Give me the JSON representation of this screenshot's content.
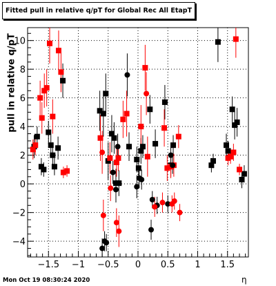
{
  "title": "Fitted pull in relative q/pT  for Global Rec All EtapT",
  "timestamp": "Mon Oct 19 08:30:24 2020",
  "chart_data": {
    "type": "scatter",
    "xlabel": "η",
    "ylabel": "pull in relative q/pT",
    "xlim": [
      -1.85,
      1.85
    ],
    "ylim": [
      -5.1,
      10.9
    ],
    "x_ticks": [
      -1.5,
      -1,
      -0.5,
      0,
      0.5,
      1,
      1.5
    ],
    "x_tick_labels": [
      "−1.5",
      "−1",
      "−0.5",
      "0",
      "0.5",
      "1",
      "1.5"
    ],
    "y_ticks": [
      -4,
      -2,
      0,
      2,
      4,
      6,
      8,
      10
    ],
    "y_tick_labels": [
      "−4",
      "−2",
      "0",
      "2",
      "4",
      "6",
      "8",
      "10"
    ],
    "grid": true,
    "legend": "none",
    "series": [
      {
        "marker": "square",
        "color": "#000000",
        "points": [
          {
            "x": -1.74,
            "y": 2.6,
            "err": 0.8
          },
          {
            "x": -1.69,
            "y": 3.3,
            "err": 0.7
          },
          {
            "x": -1.62,
            "y": 1.2,
            "err": 0.6
          },
          {
            "x": -1.58,
            "y": 1.0,
            "err": 0.5
          },
          {
            "x": -1.5,
            "y": 3.6,
            "err": 0.8
          },
          {
            "x": -1.46,
            "y": 2.7,
            "err": 0.7
          },
          {
            "x": -1.43,
            "y": 2.0,
            "err": 0.9
          },
          {
            "x": -1.4,
            "y": 1.2,
            "err": 0.6
          },
          {
            "x": -1.34,
            "y": 2.5,
            "err": 0.8
          },
          {
            "x": -1.26,
            "y": 7.2,
            "err": 1.2
          },
          {
            "x": -0.64,
            "y": 5.1,
            "err": 1.4
          },
          {
            "x": -0.58,
            "y": 4.9,
            "err": 1.6
          },
          {
            "x": -0.54,
            "y": 6.3,
            "err": 1.4
          },
          {
            "x": -0.5,
            "y": 1.6,
            "err": 1.3
          },
          {
            "x": -0.44,
            "y": 3.5,
            "err": 1.3
          },
          {
            "x": -0.4,
            "y": 3.2,
            "err": 1.1
          },
          {
            "x": -0.37,
            "y": 0.05,
            "err": 1.0
          },
          {
            "x": -0.32,
            "y": 0.05,
            "err": 0.9
          },
          {
            "x": -0.15,
            "y": 2.6,
            "err": 1.0
          },
          {
            "x": -0.02,
            "y": 1.7,
            "err": 0.9
          },
          {
            "x": 0.01,
            "y": 1.1,
            "err": 0.7
          },
          {
            "x": 0.05,
            "y": 2.3,
            "err": 0.9
          },
          {
            "x": 0.08,
            "y": 2.6,
            "err": 0.8
          },
          {
            "x": 0.2,
            "y": 5.2,
            "err": 1.0
          },
          {
            "x": 0.29,
            "y": 2.8,
            "err": 1.0
          },
          {
            "x": 0.45,
            "y": 5.7,
            "err": 1.2
          },
          {
            "x": 0.55,
            "y": 1.3,
            "err": 0.8
          },
          {
            "x": 0.59,
            "y": 2.7,
            "err": 0.7
          },
          {
            "x": 1.23,
            "y": 1.3,
            "err": 0.5
          },
          {
            "x": 1.26,
            "y": 1.6,
            "err": 0.5
          },
          {
            "x": 1.34,
            "y": 9.9,
            "err": 1.4
          },
          {
            "x": 1.48,
            "y": 2.7,
            "err": 0.8
          },
          {
            "x": 1.51,
            "y": 2.3,
            "err": 0.7
          },
          {
            "x": 1.58,
            "y": 5.2,
            "err": 0.9
          },
          {
            "x": 1.62,
            "y": 4.1,
            "err": 1.0
          },
          {
            "x": 1.66,
            "y": 4.3,
            "err": 1.0
          },
          {
            "x": 1.74,
            "y": 0.3,
            "err": 0.6
          },
          {
            "x": 1.78,
            "y": 0.7,
            "err": 0.6
          }
        ]
      },
      {
        "marker": "square",
        "color": "#ff0000",
        "points": [
          {
            "x": -1.76,
            "y": 2.4,
            "err": 0.7
          },
          {
            "x": -1.72,
            "y": 2.7,
            "err": 0.7
          },
          {
            "x": -1.64,
            "y": 6.0,
            "err": 1.2
          },
          {
            "x": -1.61,
            "y": 4.6,
            "err": 1.1
          },
          {
            "x": -1.57,
            "y": 6.5,
            "err": 1.2
          },
          {
            "x": -1.53,
            "y": 6.7,
            "err": 1.3
          },
          {
            "x": -1.48,
            "y": 9.8,
            "err": 1.4
          },
          {
            "x": -1.43,
            "y": 4.7,
            "err": 1.2
          },
          {
            "x": -1.33,
            "y": 9.3,
            "err": 1.4
          },
          {
            "x": -1.29,
            "y": 7.8,
            "err": 1.4
          },
          {
            "x": -1.25,
            "y": 0.8,
            "err": 0.4
          },
          {
            "x": -1.19,
            "y": 0.9,
            "err": 0.4
          },
          {
            "x": -0.63,
            "y": 3.2,
            "err": 1.6
          },
          {
            "x": -0.47,
            "y": 1.8,
            "err": 1.1
          },
          {
            "x": -0.36,
            "y": 1.5,
            "err": 1.0
          },
          {
            "x": -0.33,
            "y": 1.8,
            "err": 0.9
          },
          {
            "x": -0.25,
            "y": 4.5,
            "err": 1.3
          },
          {
            "x": -0.19,
            "y": 4.9,
            "err": 1.6
          },
          {
            "x": 0.05,
            "y": 4.0,
            "err": 1.5
          },
          {
            "x": 0.12,
            "y": 8.1,
            "err": 1.6
          },
          {
            "x": 0.16,
            "y": 1.9,
            "err": 1.4
          },
          {
            "x": 0.44,
            "y": 3.9,
            "err": 1.3
          },
          {
            "x": 0.49,
            "y": 1.1,
            "err": 0.9
          },
          {
            "x": 0.55,
            "y": 1.2,
            "err": 0.8
          },
          {
            "x": 0.6,
            "y": 1.3,
            "err": 0.8
          },
          {
            "x": 0.68,
            "y": 3.3,
            "err": 0.8
          },
          {
            "x": 1.51,
            "y": 1.8,
            "err": 0.5
          },
          {
            "x": 1.55,
            "y": 1.9,
            "err": 0.5
          },
          {
            "x": 1.6,
            "y": 2.2,
            "err": 0.6
          },
          {
            "x": 1.64,
            "y": 10.1,
            "err": 1.3
          },
          {
            "x": 1.7,
            "y": 1.0,
            "err": 0.4
          }
        ]
      },
      {
        "marker": "circle",
        "color": "#000000",
        "points": [
          {
            "x": -0.6,
            "y": -4.5,
            "err": 0.7
          },
          {
            "x": -0.56,
            "y": -4.0,
            "err": 0.7
          },
          {
            "x": -0.53,
            "y": -4.1,
            "err": 0.6
          },
          {
            "x": -0.42,
            "y": 0.8,
            "err": 0.8
          },
          {
            "x": -0.37,
            "y": -0.4,
            "err": 0.9
          },
          {
            "x": -0.34,
            "y": 2.6,
            "err": 0.9
          },
          {
            "x": -0.18,
            "y": 7.6,
            "err": 1.5
          },
          {
            "x": -0.02,
            "y": -0.2,
            "err": 0.8
          },
          {
            "x": 0.02,
            "y": 0.4,
            "err": 0.7
          },
          {
            "x": 0.06,
            "y": 0.3,
            "err": 0.7
          },
          {
            "x": 0.24,
            "y": -1.1,
            "err": 0.6
          },
          {
            "x": 0.22,
            "y": -3.2,
            "err": 0.7
          },
          {
            "x": 0.32,
            "y": -1.5,
            "err": 0.6
          },
          {
            "x": 0.5,
            "y": -1.4,
            "err": 0.6
          },
          {
            "x": 0.55,
            "y": 2.0,
            "err": 0.6
          },
          {
            "x": 0.58,
            "y": 1.3,
            "err": 0.6
          }
        ]
      },
      {
        "marker": "circle",
        "color": "#ff0000",
        "points": [
          {
            "x": -0.6,
            "y": 2.2,
            "err": 1.5
          },
          {
            "x": -0.58,
            "y": -2.2,
            "err": 1.1
          },
          {
            "x": -0.46,
            "y": -0.3,
            "err": 0.9
          },
          {
            "x": -0.36,
            "y": -2.7,
            "err": 1.0
          },
          {
            "x": -0.32,
            "y": -3.3,
            "err": 1.1
          },
          {
            "x": 0.14,
            "y": 6.3,
            "err": 1.5
          },
          {
            "x": 0.28,
            "y": -1.6,
            "err": 0.7
          },
          {
            "x": 0.41,
            "y": -1.3,
            "err": 0.7
          },
          {
            "x": 0.57,
            "y": -1.4,
            "err": 0.6
          },
          {
            "x": 0.61,
            "y": -1.2,
            "err": 0.6
          },
          {
            "x": 0.7,
            "y": -2.0,
            "err": 0.6
          }
        ]
      }
    ]
  }
}
